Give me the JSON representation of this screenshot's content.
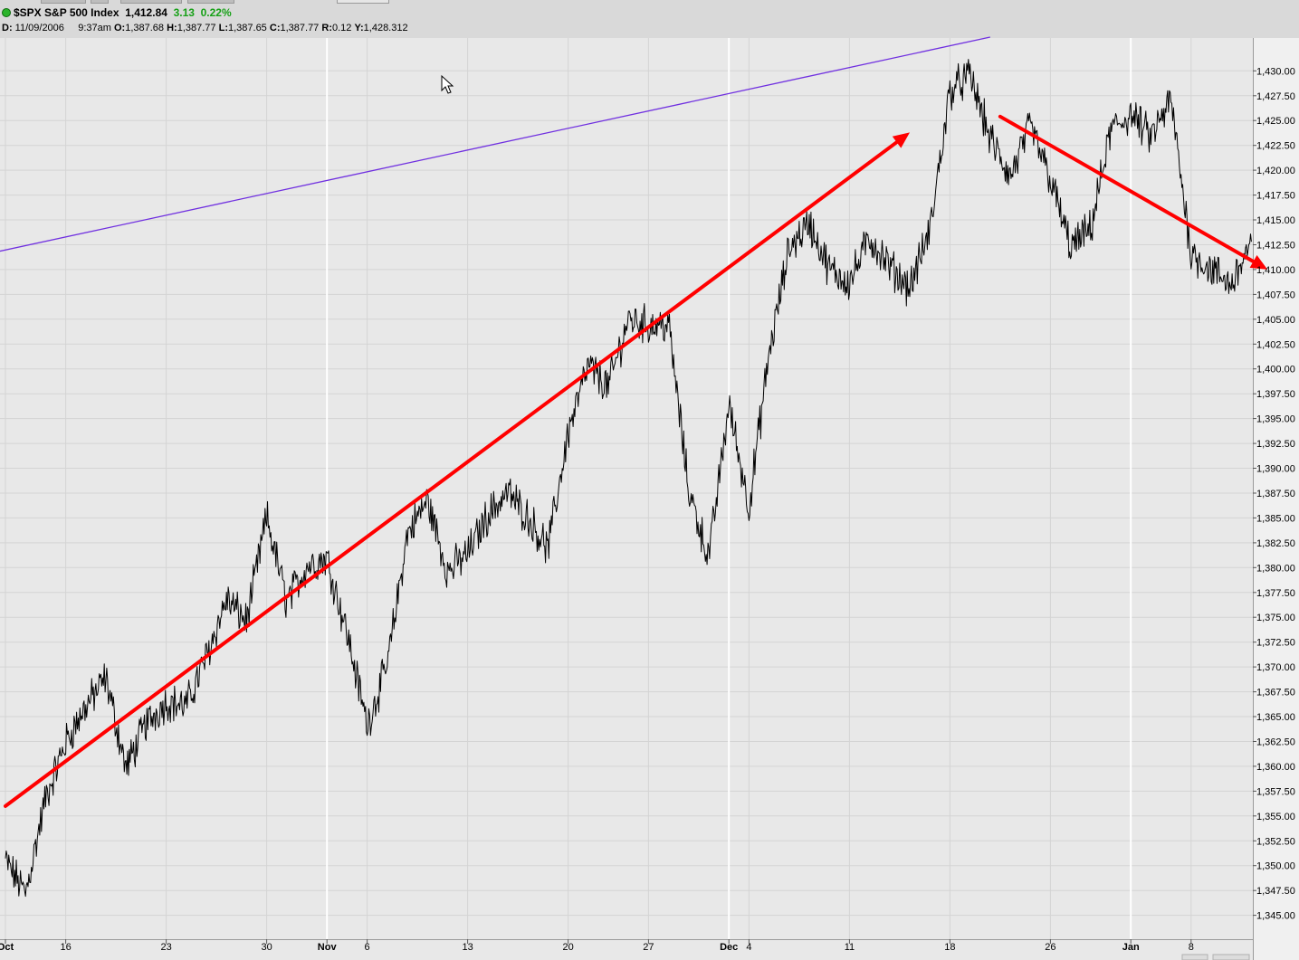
{
  "header": {
    "symbol": "$SPX",
    "name": "S&P 500 Index",
    "last": "1,412.84",
    "change": "3.13",
    "change_pct": "0.22%",
    "change_color": "#16a016",
    "status_icon": "green-dot-icon",
    "ohlc": {
      "date_label": "D:",
      "date": "11/09/2006",
      "time": "9:37am",
      "open_label": "O:",
      "open": "1,387.68",
      "high_label": "H:",
      "high": "1,387.77",
      "low_label": "L:",
      "low": "1,387.65",
      "close_label": "C:",
      "close": "1,387.77",
      "range_label": "R:",
      "range": "0.12",
      "y_label": "Y:",
      "y": "1,428.312"
    }
  },
  "chart_data": {
    "type": "line",
    "ylim": [
      1342.6,
      1433.4
    ],
    "y_ticks": [
      1345,
      1347.5,
      1350,
      1352.5,
      1355,
      1357.5,
      1360,
      1362.5,
      1365,
      1367.5,
      1370,
      1372.5,
      1375,
      1377.5,
      1380,
      1382.5,
      1385,
      1387.5,
      1390,
      1392.5,
      1395,
      1397.5,
      1400,
      1402.5,
      1405,
      1407.5,
      1410,
      1412.5,
      1415,
      1417.5,
      1420,
      1422.5,
      1425,
      1427.5,
      1430
    ],
    "y_tick_labels": [
      "1,345.00",
      "1,347.50",
      "1,350.00",
      "1,352.50",
      "1,355.00",
      "1,357.50",
      "1,360.00",
      "1,362.50",
      "1,365.00",
      "1,367.50",
      "1,370.00",
      "1,372.50",
      "1,375.00",
      "1,377.50",
      "1,380.00",
      "1,382.50",
      "1,385.00",
      "1,387.50",
      "1,390.00",
      "1,392.50",
      "1,395.00",
      "1,397.50",
      "1,400.00",
      "1,402.50",
      "1,405.00",
      "1,407.50",
      "1,410.00",
      "1,412.50",
      "1,415.00",
      "1,417.50",
      "1,420.00",
      "1,422.50",
      "1,425.00",
      "1,427.50",
      "1,430.00"
    ],
    "x_tick_labels": [
      "Oct",
      "16",
      "23",
      "30",
      "Nov",
      "6",
      "13",
      "20",
      "27",
      "Dec",
      "4",
      "11",
      "18",
      "26",
      "Jan",
      "8"
    ],
    "x_tick_bold": [
      true,
      false,
      false,
      false,
      true,
      false,
      false,
      false,
      false,
      true,
      false,
      false,
      false,
      false,
      true,
      false
    ],
    "x_tick_index": [
      0,
      3,
      8,
      13,
      16,
      18,
      23,
      28,
      32,
      36,
      37,
      42,
      47,
      52,
      56,
      59
    ],
    "major_gridlines_at": [
      1,
      16,
      36,
      56
    ],
    "grid": true,
    "price_color": "#000000",
    "trend_color": "#ff0000",
    "channel_color": "#7030e0",
    "series": [
      {
        "values": [
          1350.5,
          1347.2,
          1356.8,
          1362.4,
          1366.0,
          1368.9,
          1359.8,
          1364.3,
          1366.5,
          1366.1,
          1371.0,
          1376.8,
          1374.6,
          1385.1,
          1376.5,
          1380.2,
          1381.0,
          1373.4,
          1364.2,
          1370.1,
          1383.4,
          1386.8,
          1379.6,
          1381.4,
          1385.3,
          1387.6,
          1385.1,
          1381.9,
          1393.6,
          1400.3,
          1398.2,
          1405.0,
          1404.4,
          1404.5,
          1387.8,
          1381.0,
          1396.4,
          1386.1,
          1401.5,
          1412.2,
          1414.7,
          1410.0,
          1408.7,
          1413.2,
          1410.3,
          1408.2,
          1413.9,
          1428.0,
          1429.5,
          1423.2,
          1419.3,
          1424.4,
          1419.1,
          1412.2,
          1414.0,
          1424.0,
          1425.6,
          1423.3,
          1427.0,
          1411.7,
          1410.0,
          1408.5,
          1412.8
        ]
      }
    ]
  },
  "annotations": {
    "trend_up": {
      "from": [
        0,
        1356.0
      ],
      "to": [
        45,
        1423.8
      ]
    },
    "trend_down": {
      "from": [
        49.5,
        1425.4
      ],
      "to": [
        62.8,
        1410.0
      ]
    },
    "channel_line": {
      "from": [
        -0.4,
        1411.8
      ],
      "to": [
        49.0,
        1433.4
      ]
    }
  },
  "cursor_icon": "mouse-pointer-icon"
}
